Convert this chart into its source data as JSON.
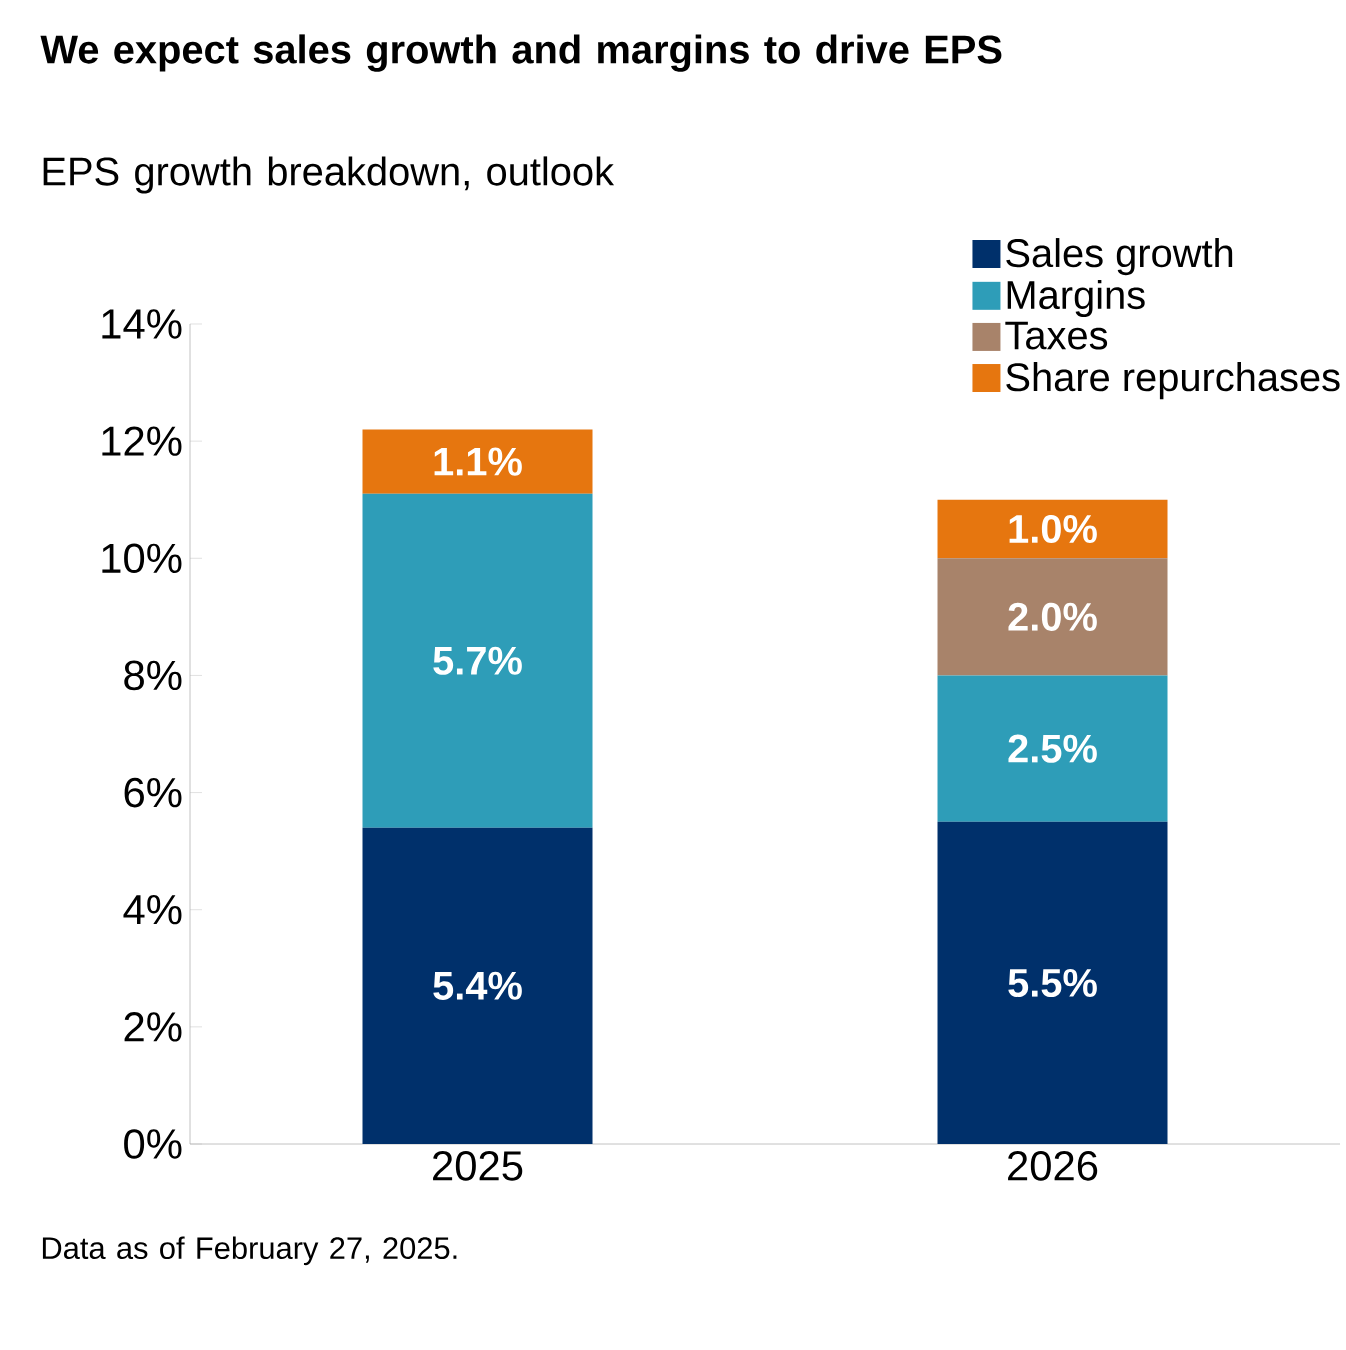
{
  "chart_data": {
    "type": "bar",
    "stacked": true,
    "title": "We expect sales growth and margins to drive EPS",
    "subtitle": "EPS growth breakdown, outlook",
    "categories": [
      "2025",
      "2026"
    ],
    "series": [
      {
        "name": "Sales growth",
        "color": "#00306b",
        "values": [
          5.4,
          5.5
        ],
        "value_labels": [
          "5.4%",
          "5.5%"
        ]
      },
      {
        "name": "Margins",
        "color": "#2e9db8",
        "values": [
          5.7,
          2.5
        ],
        "value_labels": [
          "5.7%",
          "2.5%"
        ]
      },
      {
        "name": "Taxes",
        "color": "#a8836a",
        "values": [
          null,
          2.0
        ],
        "value_labels": [
          null,
          "2.0%"
        ]
      },
      {
        "name": "Share repurchases",
        "color": "#e6760f",
        "values": [
          1.1,
          1.0
        ],
        "value_labels": [
          "1.1%",
          "1.0%"
        ]
      }
    ],
    "ylim": [
      0,
      14
    ],
    "yticks": [
      {
        "value": 0,
        "label": "0%"
      },
      {
        "value": 2,
        "label": "2%"
      },
      {
        "value": 4,
        "label": "4%"
      },
      {
        "value": 6,
        "label": "6%"
      },
      {
        "value": 8,
        "label": "8%"
      },
      {
        "value": 10,
        "label": "10%"
      },
      {
        "value": 12,
        "label": "12%"
      },
      {
        "value": 14,
        "label": "14%"
      }
    ],
    "grid": false,
    "legend": "top right",
    "annotations": [
      "Data as of February 27, 2025."
    ]
  }
}
